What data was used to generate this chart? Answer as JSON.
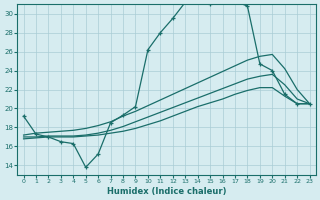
{
  "xlabel": "Humidex (Indice chaleur)",
  "bg_color": "#d6ecf0",
  "grid_color": "#aacdd5",
  "line_color": "#1a6e6a",
  "xlim": [
    -0.5,
    23.5
  ],
  "ylim": [
    13,
    31
  ],
  "xticks": [
    0,
    1,
    2,
    3,
    4,
    5,
    6,
    7,
    8,
    9,
    10,
    11,
    12,
    13,
    14,
    15,
    16,
    17,
    18,
    19,
    20,
    21,
    22,
    23
  ],
  "yticks": [
    14,
    16,
    18,
    20,
    22,
    24,
    26,
    28,
    30
  ],
  "curve_jagged_x": [
    0,
    1,
    2,
    3,
    4,
    5,
    6,
    7,
    8,
    9,
    10,
    11,
    12,
    13,
    14,
    15,
    16,
    17,
    18,
    19,
    20,
    21,
    22,
    23
  ],
  "curve_jagged_y": [
    19.2,
    17.3,
    17.0,
    16.5,
    16.3,
    13.8,
    15.2,
    18.5,
    19.3,
    20.2,
    26.2,
    28.0,
    29.5,
    31.2,
    31.5,
    31.0,
    31.5,
    31.3,
    30.8,
    24.7,
    24.0,
    21.5,
    20.5,
    20.5
  ],
  "curve_upper_x": [
    0,
    1,
    2,
    3,
    4,
    5,
    6,
    7,
    8,
    9,
    10,
    11,
    12,
    13,
    14,
    15,
    16,
    17,
    18,
    19,
    20,
    21,
    22,
    23
  ],
  "curve_upper_y": [
    17.2,
    17.4,
    17.5,
    17.6,
    17.7,
    17.9,
    18.2,
    18.6,
    19.2,
    19.7,
    20.3,
    20.9,
    21.5,
    22.1,
    22.7,
    23.3,
    23.9,
    24.5,
    25.1,
    25.5,
    25.7,
    24.2,
    22.0,
    20.5
  ],
  "curve_mid_x": [
    0,
    1,
    2,
    3,
    4,
    5,
    6,
    7,
    8,
    9,
    10,
    11,
    12,
    13,
    14,
    15,
    16,
    17,
    18,
    19,
    20,
    21,
    22,
    23
  ],
  "curve_mid_y": [
    17.0,
    17.0,
    17.1,
    17.1,
    17.1,
    17.2,
    17.4,
    17.7,
    18.1,
    18.6,
    19.1,
    19.6,
    20.1,
    20.6,
    21.1,
    21.6,
    22.1,
    22.6,
    23.1,
    23.4,
    23.6,
    22.5,
    21.0,
    20.5
  ],
  "curve_lower_x": [
    0,
    1,
    2,
    3,
    4,
    5,
    6,
    7,
    8,
    9,
    10,
    11,
    12,
    13,
    14,
    15,
    16,
    17,
    18,
    19,
    20,
    21,
    22,
    23
  ],
  "curve_lower_y": [
    16.8,
    16.9,
    17.0,
    17.0,
    17.0,
    17.1,
    17.2,
    17.4,
    17.6,
    17.9,
    18.3,
    18.7,
    19.2,
    19.7,
    20.2,
    20.6,
    21.0,
    21.5,
    21.9,
    22.2,
    22.2,
    21.3,
    20.5,
    20.5
  ]
}
